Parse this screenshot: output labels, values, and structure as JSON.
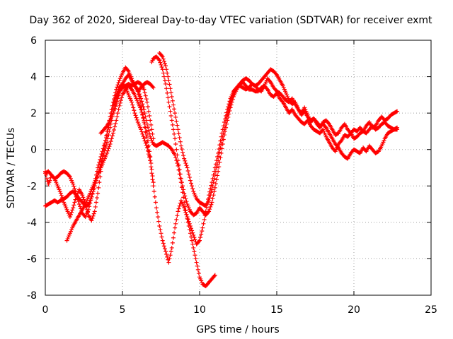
{
  "chart_data": {
    "type": "scatter",
    "title": "Day 362 of 2020, Sidereal Day-to-day VTEC variation (SDTVAR) for receiver exmt",
    "xlabel": "GPS time / hours",
    "ylabel": "SDTVAR / TECUs",
    "xlim": [
      0,
      25
    ],
    "ylim": [
      -8,
      6
    ],
    "x_ticks": [
      "0",
      "5",
      "10",
      "15",
      "20",
      "25"
    ],
    "y_ticks": [
      "-8",
      "-6",
      "-4",
      "-2",
      "0",
      "2",
      "4",
      "6"
    ],
    "grid": true,
    "marker": "+",
    "color": "#ff0000",
    "series": [
      {
        "x": [
          0.0,
          0.2,
          0.4,
          0.6,
          0.8,
          1.0,
          1.2,
          1.4,
          1.6,
          1.8,
          2.0,
          2.2,
          2.4,
          2.6,
          2.8,
          3.0,
          3.2,
          3.4,
          3.6,
          3.8,
          4.0,
          4.2,
          4.4,
          4.6,
          4.8,
          5.0,
          5.2,
          5.4,
          5.6,
          5.8,
          6.0,
          6.2,
          6.4,
          6.6,
          6.8,
          7.0
        ],
        "y": [
          -3.1,
          -3.0,
          -2.9,
          -2.8,
          -2.9,
          -2.8,
          -2.7,
          -2.6,
          -2.4,
          -2.3,
          -2.5,
          -2.7,
          -2.9,
          -3.1,
          -3.0,
          -2.6,
          -2.0,
          -1.4,
          -0.8,
          -0.2,
          0.4,
          1.2,
          2.0,
          2.8,
          3.2,
          3.4,
          3.5,
          3.6,
          3.5,
          3.6,
          3.7,
          3.6,
          3.3,
          2.6,
          1.6,
          0.6
        ]
      },
      {
        "x": [
          0.0,
          0.2,
          0.4,
          0.6,
          0.8,
          1.0,
          1.2,
          1.4,
          1.6,
          1.8,
          2.0,
          2.2,
          2.4,
          2.6,
          2.8,
          3.0,
          3.2,
          3.4,
          3.6,
          3.8,
          4.0,
          4.2,
          4.4,
          4.6,
          4.8,
          5.0,
          5.2,
          5.4,
          5.6,
          5.8,
          6.0,
          6.2,
          6.4,
          6.6,
          6.8
        ],
        "y": [
          -1.3,
          -1.2,
          -1.4,
          -1.6,
          -1.5,
          -1.3,
          -1.2,
          -1.3,
          -1.5,
          -1.9,
          -2.4,
          -3.0,
          -3.5,
          -3.7,
          -3.3,
          -2.6,
          -1.8,
          -1.0,
          -0.4,
          0.2,
          0.8,
          1.6,
          2.4,
          3.0,
          3.4,
          3.6,
          3.4,
          3.0,
          2.6,
          2.0,
          1.5,
          1.1,
          0.6,
          0.1,
          -0.6
        ]
      },
      {
        "x": [
          0.0,
          0.1,
          0.2,
          0.3,
          0.4,
          0.6,
          0.8,
          1.0,
          1.2,
          1.4,
          1.6,
          1.8,
          2.0,
          2.2,
          2.4,
          2.6,
          2.8,
          3.0,
          3.2,
          3.4,
          3.6,
          3.8,
          4.0,
          4.2,
          4.4,
          4.6,
          4.8,
          5.0,
          5.2,
          5.4,
          5.6,
          5.8,
          6.0,
          6.2,
          6.4,
          6.6,
          6.8,
          7.0
        ],
        "y": [
          -1.2,
          -1.6,
          -1.9,
          -1.7,
          -1.4,
          -1.6,
          -2.0,
          -2.4,
          -2.9,
          -3.3,
          -3.7,
          -3.2,
          -2.6,
          -2.2,
          -2.5,
          -3.0,
          -3.6,
          -3.9,
          -3.4,
          -2.4,
          -1.2,
          0.0,
          1.0,
          1.8,
          2.6,
          3.3,
          3.8,
          4.2,
          4.5,
          4.3,
          3.9,
          3.5,
          3.2,
          3.4,
          3.6,
          3.7,
          3.6,
          3.4
        ]
      },
      {
        "x": [
          1.4,
          1.6,
          1.8,
          2.0,
          2.2,
          2.4,
          2.6,
          2.8,
          3.0,
          3.2,
          3.4,
          3.6,
          3.8,
          4.0,
          4.2,
          4.4,
          4.6,
          4.8,
          5.0,
          5.2,
          5.4,
          5.6,
          5.8,
          6.0,
          6.2,
          6.4,
          6.6,
          6.8,
          7.0
        ],
        "y": [
          -5.0,
          -4.6,
          -4.2,
          -3.9,
          -3.6,
          -3.3,
          -3.0,
          -2.6,
          -2.2,
          -1.8,
          -1.4,
          -1.0,
          -0.6,
          -0.2,
          0.3,
          0.9,
          1.6,
          2.4,
          3.0,
          3.3,
          3.5,
          3.3,
          3.0,
          2.6,
          2.2,
          1.6,
          0.8,
          -0.4,
          -1.8
        ]
      },
      {
        "x": [
          3.6,
          3.8,
          4.0,
          4.2,
          4.4,
          4.6,
          4.8,
          5.0,
          5.2,
          5.4,
          5.6,
          5.8,
          6.0,
          6.2,
          6.4,
          6.6,
          6.8,
          7.0,
          7.2,
          7.4,
          7.6,
          7.8,
          8.0,
          8.2,
          8.4,
          8.6,
          8.8,
          9.0,
          9.2,
          9.4,
          9.6,
          9.8,
          10.0,
          10.2,
          10.4,
          10.6,
          10.8,
          11.0
        ],
        "y": [
          0.9,
          1.1,
          1.3,
          1.6,
          2.0,
          2.5,
          3.1,
          3.6,
          3.9,
          4.1,
          3.8,
          3.5,
          3.3,
          2.8,
          2.2,
          1.4,
          0.7,
          0.3,
          0.2,
          0.3,
          0.4,
          0.3,
          0.2,
          0.0,
          -0.3,
          -0.9,
          -1.8,
          -2.9,
          -3.8,
          -4.6,
          -5.4,
          -6.2,
          -7.0,
          -7.4,
          -7.5,
          -7.3,
          -7.1,
          -6.9
        ]
      },
      {
        "x": [
          6.0,
          6.2,
          6.4,
          6.6,
          6.8,
          7.0,
          7.2,
          7.4,
          7.6,
          7.8,
          8.0,
          8.2,
          8.4,
          8.6,
          8.8,
          9.0,
          9.2,
          9.4,
          9.6,
          9.8,
          10.0,
          10.2,
          10.4,
          10.6,
          10.8,
          11.0,
          11.2,
          11.4,
          11.6,
          11.8,
          12.0,
          12.2,
          12.4,
          12.6,
          12.8,
          13.0,
          13.2,
          13.4,
          13.6,
          13.8,
          14.0,
          14.2,
          14.4,
          14.6,
          14.8,
          15.0,
          15.2,
          15.4,
          15.6,
          15.8,
          16.0,
          16.2,
          16.4,
          16.6,
          16.8,
          17.0,
          17.2,
          17.4,
          17.6,
          17.8,
          18.0,
          18.2,
          18.4,
          18.6,
          18.8,
          19.0,
          19.2,
          19.4,
          19.6,
          19.8,
          20.0,
          20.2,
          20.4,
          20.6,
          20.8,
          21.0,
          21.2,
          21.4,
          21.6,
          21.8,
          22.0,
          22.2,
          22.4,
          22.6,
          22.8
        ],
        "y": [
          3.2,
          2.4,
          1.5,
          0.4,
          -0.6,
          -2.0,
          -3.2,
          -4.2,
          -5.0,
          -5.6,
          -6.2,
          -5.4,
          -4.3,
          -3.4,
          -2.8,
          -3.2,
          -3.7,
          -4.2,
          -4.7,
          -5.2,
          -5.0,
          -4.3,
          -3.4,
          -2.5,
          -1.8,
          -1.0,
          -0.2,
          0.7,
          1.5,
          2.2,
          2.8,
          3.2,
          3.4,
          3.6,
          3.7,
          3.5,
          3.3,
          3.3,
          3.2,
          3.2,
          3.4,
          3.5,
          3.3,
          3.0,
          2.9,
          3.1,
          2.8,
          2.6,
          2.3,
          2.0,
          2.2,
          1.9,
          1.7,
          1.5,
          1.4,
          1.6,
          1.3,
          1.1,
          1.0,
          0.9,
          1.1,
          0.7,
          0.4,
          0.1,
          -0.1,
          0.3,
          0.5,
          0.8,
          0.7,
          0.9,
          1.1,
          1.0,
          1.2,
          1.0,
          0.9,
          1.1,
          1.3,
          1.1,
          1.2,
          1.4,
          1.5,
          1.3,
          1.2,
          1.1,
          1.2
        ]
      },
      {
        "x": [
          6.9,
          7.0,
          7.2,
          7.4,
          7.6,
          7.8,
          8.0,
          8.2,
          8.4,
          8.6,
          8.8,
          9.0,
          9.2,
          9.4,
          9.6,
          9.8,
          10.0,
          10.2,
          10.4,
          10.6,
          10.8,
          11.0,
          11.2,
          11.4,
          11.6,
          11.8,
          12.0,
          12.2,
          12.4,
          12.6,
          12.8,
          13.0,
          13.2,
          13.4,
          13.6,
          13.8,
          14.0,
          14.2,
          14.4,
          14.6,
          14.8,
          15.0,
          15.2,
          15.4,
          15.6,
          15.8,
          16.0,
          16.2,
          16.4,
          16.6,
          16.8,
          17.0,
          17.2,
          17.4,
          17.6,
          17.8,
          18.0,
          18.2,
          18.4,
          18.6,
          18.8,
          19.0,
          19.2,
          19.4,
          19.6,
          19.8,
          20.0,
          20.2,
          20.4,
          20.6,
          20.8,
          21.0,
          21.2,
          21.4,
          21.6,
          21.8,
          22.0,
          22.2,
          22.4,
          22.6,
          22.8
        ],
        "y": [
          4.8,
          5.0,
          5.1,
          4.9,
          4.4,
          3.6,
          2.6,
          1.6,
          0.6,
          -0.6,
          -1.6,
          -2.4,
          -3.0,
          -3.4,
          -3.6,
          -3.5,
          -3.2,
          -3.4,
          -3.6,
          -3.4,
          -2.9,
          -2.1,
          -1.2,
          -0.2,
          0.8,
          1.6,
          2.3,
          2.9,
          3.3,
          3.6,
          3.8,
          3.9,
          3.8,
          3.6,
          3.5,
          3.6,
          3.8,
          4.0,
          4.2,
          4.4,
          4.3,
          4.1,
          3.8,
          3.5,
          3.1,
          2.7,
          2.5,
          2.6,
          2.2,
          1.9,
          2.1,
          1.8,
          1.6,
          1.7,
          1.5,
          1.3,
          1.4,
          1.2,
          0.9,
          0.6,
          0.3,
          0.1,
          -0.2,
          -0.4,
          -0.5,
          -0.2,
          0.0,
          -0.1,
          -0.2,
          0.1,
          -0.1,
          0.2,
          0.0,
          -0.2,
          -0.1,
          0.2,
          0.6,
          0.9,
          1.0,
          1.1,
          1.1
        ]
      },
      {
        "x": [
          7.4,
          7.6,
          7.8,
          8.0,
          8.2,
          8.4,
          8.6,
          8.8,
          9.0,
          9.2,
          9.4,
          9.6,
          9.8,
          10.0,
          10.2,
          10.4,
          10.6,
          10.8,
          11.0,
          11.2,
          11.4,
          11.6,
          11.8,
          12.0,
          12.2,
          12.4,
          12.6,
          12.8,
          13.0,
          13.2,
          13.4,
          13.6,
          13.8,
          14.0,
          14.2,
          14.4,
          14.6,
          14.8,
          15.0,
          15.2,
          15.4,
          15.6,
          15.8,
          16.0,
          16.2,
          16.4,
          16.6,
          16.8,
          17.0,
          17.2,
          17.4,
          17.6,
          17.8,
          18.0,
          18.2,
          18.4,
          18.6,
          18.8,
          19.0,
          19.2,
          19.4,
          19.6,
          19.8,
          20.0,
          20.2,
          20.4,
          20.6,
          20.8,
          21.0,
          21.2,
          21.4,
          21.6,
          21.8,
          22.0,
          22.2,
          22.4,
          22.6,
          22.8
        ],
        "y": [
          5.3,
          5.1,
          4.6,
          3.8,
          2.9,
          2.0,
          1.1,
          0.2,
          -0.5,
          -1.0,
          -1.7,
          -2.3,
          -2.7,
          -2.9,
          -3.0,
          -3.1,
          -2.8,
          -2.2,
          -1.4,
          -0.6,
          0.3,
          1.1,
          1.9,
          2.6,
          3.1,
          3.4,
          3.5,
          3.4,
          3.3,
          3.4,
          3.6,
          3.5,
          3.3,
          3.2,
          3.5,
          3.9,
          3.7,
          3.4,
          3.2,
          3.1,
          2.9,
          2.7,
          2.6,
          2.8,
          2.5,
          2.2,
          2.0,
          2.3,
          1.9,
          1.5,
          1.7,
          1.4,
          1.2,
          1.5,
          1.6,
          1.4,
          1.1,
          0.8,
          0.9,
          1.2,
          1.4,
          1.1,
          0.9,
          0.6,
          0.7,
          0.9,
          1.0,
          1.3,
          1.5,
          1.2,
          1.3,
          1.6,
          1.8,
          1.6,
          1.7,
          1.9,
          2.0,
          2.1
        ]
      }
    ]
  }
}
